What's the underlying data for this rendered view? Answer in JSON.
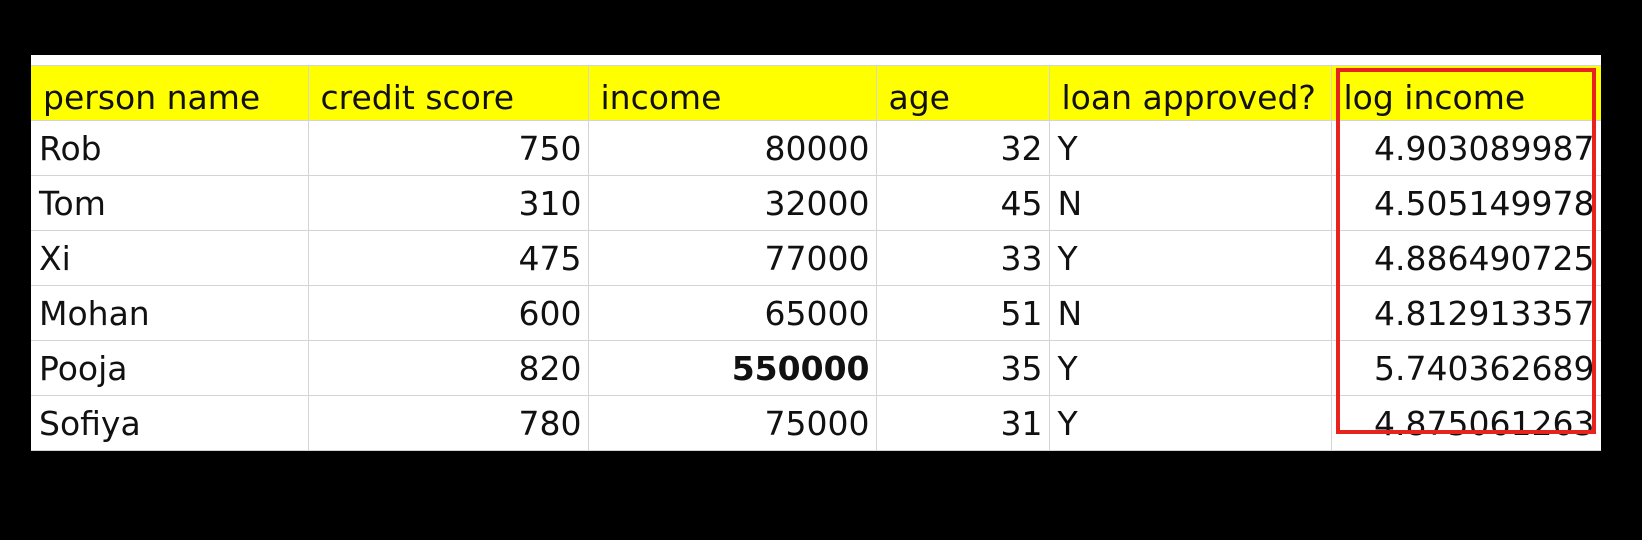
{
  "sheet": {
    "headers": [
      "person name",
      "credit score",
      "income",
      "age",
      "loan approved?",
      "log income"
    ],
    "rows": [
      {
        "name": "Rob",
        "credit": "750",
        "income": "80000",
        "age": "32",
        "approved": "Y",
        "log": "4.903089987"
      },
      {
        "name": "Tom",
        "credit": "310",
        "income": "32000",
        "age": "45",
        "approved": "N",
        "log": "4.505149978"
      },
      {
        "name": "Xi",
        "credit": "475",
        "income": "77000",
        "age": "33",
        "approved": "Y",
        "log": "4.886490725"
      },
      {
        "name": "Mohan",
        "credit": "600",
        "income": "65000",
        "age": "51",
        "approved": "N",
        "log": "4.812913357"
      },
      {
        "name": "Pooja",
        "credit": "820",
        "income": "550000",
        "age": "35",
        "approved": "Y",
        "log": "5.740362689"
      },
      {
        "name": "Sofiya",
        "credit": "780",
        "income": "75000",
        "age": "31",
        "approved": "Y",
        "log": "4.875061263"
      }
    ],
    "colors": {
      "header_fill": "#ffff00",
      "highlight_border": "#e8231e"
    }
  }
}
